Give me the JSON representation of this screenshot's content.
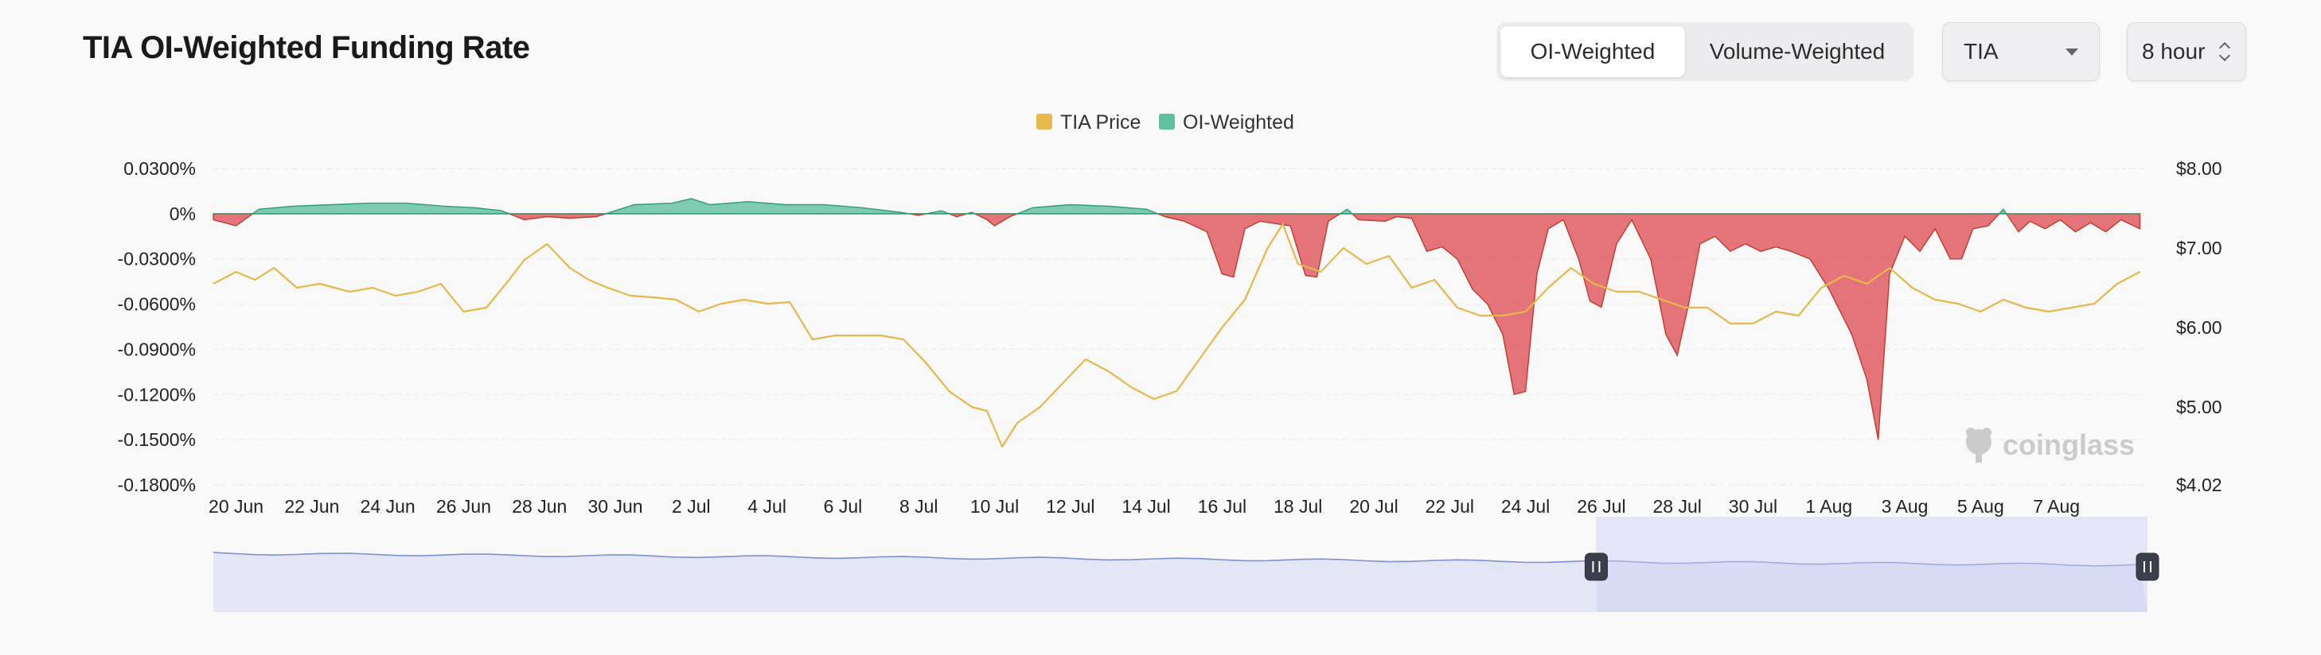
{
  "header": {
    "title": "TIA OI-Weighted Funding Rate"
  },
  "controls": {
    "weighting_tabs": [
      {
        "label": "OI-Weighted",
        "active": true
      },
      {
        "label": "Volume-Weighted",
        "active": false
      }
    ],
    "coin_select": {
      "value": "TIA"
    },
    "interval_select": {
      "value": "8 hour"
    }
  },
  "watermark": {
    "text": "coinglass"
  },
  "colors": {
    "positive": "#5fbf9f",
    "negative": "#e0525a",
    "price": "#e6b84c",
    "navigator_line": "#7e8fd6",
    "navigator_fill": "#e3e6f5"
  },
  "chart_data": {
    "type": "area",
    "legend_position": "top-center",
    "legend": [
      {
        "name": "TIA Price",
        "color": "#e6b84c"
      },
      {
        "name": "OI-Weighted",
        "color": "#5fbf9f"
      }
    ],
    "x_ticks": [
      "20 Jun",
      "22 Jun",
      "24 Jun",
      "26 Jun",
      "28 Jun",
      "30 Jun",
      "2 Jul",
      "4 Jul",
      "6 Jul",
      "8 Jul",
      "10 Jul",
      "12 Jul",
      "14 Jul",
      "16 Jul",
      "18 Jul",
      "20 Jul",
      "22 Jul",
      "24 Jul",
      "26 Jul",
      "28 Jul",
      "30 Jul",
      "1 Aug",
      "3 Aug",
      "5 Aug",
      "7 Aug"
    ],
    "y_left": {
      "ticks": [
        "0.0300%",
        "0%",
        "-0.0300%",
        "-0.0600%",
        "-0.0900%",
        "-0.1200%",
        "-0.1500%",
        "-0.1800%"
      ],
      "range": [
        -0.18,
        0.03
      ]
    },
    "y_right": {
      "ticks": [
        "$8.00",
        "$7.00",
        "$6.00",
        "$5.00",
        "$4.02"
      ],
      "range": [
        4.02,
        8.0
      ]
    },
    "x_range_days": [
      -0.6,
      50.4
    ],
    "series": [
      {
        "name": "OI-Weighted",
        "unit": "%",
        "points": [
          [
            -0.6,
            -0.004
          ],
          [
            0,
            -0.008
          ],
          [
            0.6,
            0.003
          ],
          [
            1.5,
            0.005
          ],
          [
            2.5,
            0.006
          ],
          [
            3.5,
            0.007
          ],
          [
            4.5,
            0.007
          ],
          [
            5.5,
            0.005
          ],
          [
            6.3,
            0.004
          ],
          [
            7,
            0.002
          ],
          [
            7.6,
            -0.004
          ],
          [
            8.2,
            -0.002
          ],
          [
            8.8,
            -0.003
          ],
          [
            9.5,
            -0.002
          ],
          [
            10.5,
            0.006
          ],
          [
            11.5,
            0.007
          ],
          [
            12,
            0.01
          ],
          [
            12.5,
            0.006
          ],
          [
            13.5,
            0.008
          ],
          [
            14.5,
            0.006
          ],
          [
            15.5,
            0.006
          ],
          [
            16.5,
            0.004
          ],
          [
            17.5,
            0.001
          ],
          [
            18,
            -0.001
          ],
          [
            18.6,
            0.002
          ],
          [
            19,
            -0.002
          ],
          [
            19.4,
            0.001
          ],
          [
            19.8,
            -0.004
          ],
          [
            20,
            -0.008
          ],
          [
            20.4,
            -0.002
          ],
          [
            21,
            0.004
          ],
          [
            22,
            0.006
          ],
          [
            23,
            0.005
          ],
          [
            24,
            0.003
          ],
          [
            24.5,
            -0.002
          ],
          [
            25,
            -0.005
          ],
          [
            25.6,
            -0.012
          ],
          [
            26,
            -0.04
          ],
          [
            26.3,
            -0.042
          ],
          [
            26.6,
            -0.01
          ],
          [
            27,
            -0.005
          ],
          [
            27.8,
            -0.008
          ],
          [
            28.2,
            -0.041
          ],
          [
            28.5,
            -0.042
          ],
          [
            28.8,
            -0.005
          ],
          [
            29.3,
            0.003
          ],
          [
            29.6,
            -0.004
          ],
          [
            30.3,
            -0.005
          ],
          [
            30.6,
            -0.002
          ],
          [
            31,
            -0.003
          ],
          [
            31.4,
            -0.025
          ],
          [
            31.8,
            -0.022
          ],
          [
            32.2,
            -0.03
          ],
          [
            32.6,
            -0.05
          ],
          [
            33,
            -0.06
          ],
          [
            33.4,
            -0.08
          ],
          [
            33.7,
            -0.12
          ],
          [
            34,
            -0.118
          ],
          [
            34.3,
            -0.04
          ],
          [
            34.6,
            -0.01
          ],
          [
            35,
            -0.004
          ],
          [
            35.4,
            -0.03
          ],
          [
            35.7,
            -0.058
          ],
          [
            36,
            -0.062
          ],
          [
            36.4,
            -0.02
          ],
          [
            36.8,
            -0.004
          ],
          [
            37.3,
            -0.03
          ],
          [
            37.7,
            -0.08
          ],
          [
            38,
            -0.094
          ],
          [
            38.3,
            -0.06
          ],
          [
            38.6,
            -0.02
          ],
          [
            39,
            -0.015
          ],
          [
            39.4,
            -0.025
          ],
          [
            39.8,
            -0.02
          ],
          [
            40.2,
            -0.025
          ],
          [
            40.6,
            -0.022
          ],
          [
            41,
            -0.025
          ],
          [
            41.5,
            -0.03
          ],
          [
            42,
            -0.05
          ],
          [
            42.6,
            -0.08
          ],
          [
            43,
            -0.11
          ],
          [
            43.3,
            -0.15
          ],
          [
            43.6,
            -0.04
          ],
          [
            44,
            -0.015
          ],
          [
            44.4,
            -0.025
          ],
          [
            44.8,
            -0.01
          ],
          [
            45.2,
            -0.03
          ],
          [
            45.5,
            -0.03
          ],
          [
            45.8,
            -0.01
          ],
          [
            46.2,
            -0.008
          ],
          [
            46.6,
            0.003
          ],
          [
            47,
            -0.012
          ],
          [
            47.3,
            -0.005
          ],
          [
            47.7,
            -0.01
          ],
          [
            48.1,
            -0.004
          ],
          [
            48.5,
            -0.012
          ],
          [
            48.9,
            -0.006
          ],
          [
            49.3,
            -0.012
          ],
          [
            49.7,
            -0.004
          ],
          [
            50.2,
            -0.01
          ]
        ]
      },
      {
        "name": "TIA Price",
        "unit": "$",
        "points": [
          [
            -0.6,
            6.55
          ],
          [
            0,
            6.7
          ],
          [
            0.5,
            6.6
          ],
          [
            1,
            6.75
          ],
          [
            1.6,
            6.5
          ],
          [
            2.2,
            6.55
          ],
          [
            3,
            6.45
          ],
          [
            3.6,
            6.5
          ],
          [
            4.2,
            6.4
          ],
          [
            4.8,
            6.45
          ],
          [
            5.4,
            6.55
          ],
          [
            6,
            6.2
          ],
          [
            6.6,
            6.25
          ],
          [
            7.2,
            6.6
          ],
          [
            7.6,
            6.85
          ],
          [
            8.2,
            7.05
          ],
          [
            8.8,
            6.75
          ],
          [
            9.3,
            6.6
          ],
          [
            9.8,
            6.5
          ],
          [
            10.4,
            6.4
          ],
          [
            11,
            6.38
          ],
          [
            11.6,
            6.35
          ],
          [
            12.2,
            6.2
          ],
          [
            12.8,
            6.3
          ],
          [
            13.4,
            6.35
          ],
          [
            14,
            6.3
          ],
          [
            14.6,
            6.32
          ],
          [
            15.2,
            5.85
          ],
          [
            15.8,
            5.9
          ],
          [
            16.4,
            5.9
          ],
          [
            17,
            5.9
          ],
          [
            17.6,
            5.85
          ],
          [
            18.2,
            5.55
          ],
          [
            18.8,
            5.2
          ],
          [
            19.4,
            5
          ],
          [
            19.8,
            4.95
          ],
          [
            20.2,
            4.5
          ],
          [
            20.6,
            4.8
          ],
          [
            21.2,
            5
          ],
          [
            21.8,
            5.3
          ],
          [
            22.4,
            5.6
          ],
          [
            23,
            5.45
          ],
          [
            23.6,
            5.25
          ],
          [
            24.2,
            5.1
          ],
          [
            24.8,
            5.2
          ],
          [
            25.4,
            5.6
          ],
          [
            26,
            6
          ],
          [
            26.6,
            6.35
          ],
          [
            27.2,
            7.0
          ],
          [
            27.6,
            7.3
          ],
          [
            28,
            6.8
          ],
          [
            28.6,
            6.7
          ],
          [
            29.2,
            7.0
          ],
          [
            29.8,
            6.8
          ],
          [
            30.4,
            6.9
          ],
          [
            31,
            6.5
          ],
          [
            31.6,
            6.6
          ],
          [
            32.2,
            6.25
          ],
          [
            32.8,
            6.15
          ],
          [
            33.4,
            6.15
          ],
          [
            34,
            6.2
          ],
          [
            34.6,
            6.5
          ],
          [
            35.2,
            6.75
          ],
          [
            35.8,
            6.55
          ],
          [
            36.4,
            6.45
          ],
          [
            37,
            6.45
          ],
          [
            37.6,
            6.35
          ],
          [
            38.2,
            6.25
          ],
          [
            38.8,
            6.25
          ],
          [
            39.4,
            6.05
          ],
          [
            40,
            6.05
          ],
          [
            40.6,
            6.2
          ],
          [
            41.2,
            6.15
          ],
          [
            41.8,
            6.5
          ],
          [
            42.4,
            6.65
          ],
          [
            43,
            6.55
          ],
          [
            43.6,
            6.75
          ],
          [
            44.2,
            6.5
          ],
          [
            44.8,
            6.35
          ],
          [
            45.4,
            6.3
          ],
          [
            46,
            6.2
          ],
          [
            46.6,
            6.35
          ],
          [
            47.2,
            6.25
          ],
          [
            47.8,
            6.2
          ],
          [
            48.4,
            6.25
          ],
          [
            49,
            6.3
          ],
          [
            49.6,
            6.55
          ],
          [
            50.2,
            6.7
          ]
        ]
      }
    ]
  },
  "navigator": {
    "selected_start_fraction": 0.715,
    "selected_end_fraction": 1.0
  }
}
